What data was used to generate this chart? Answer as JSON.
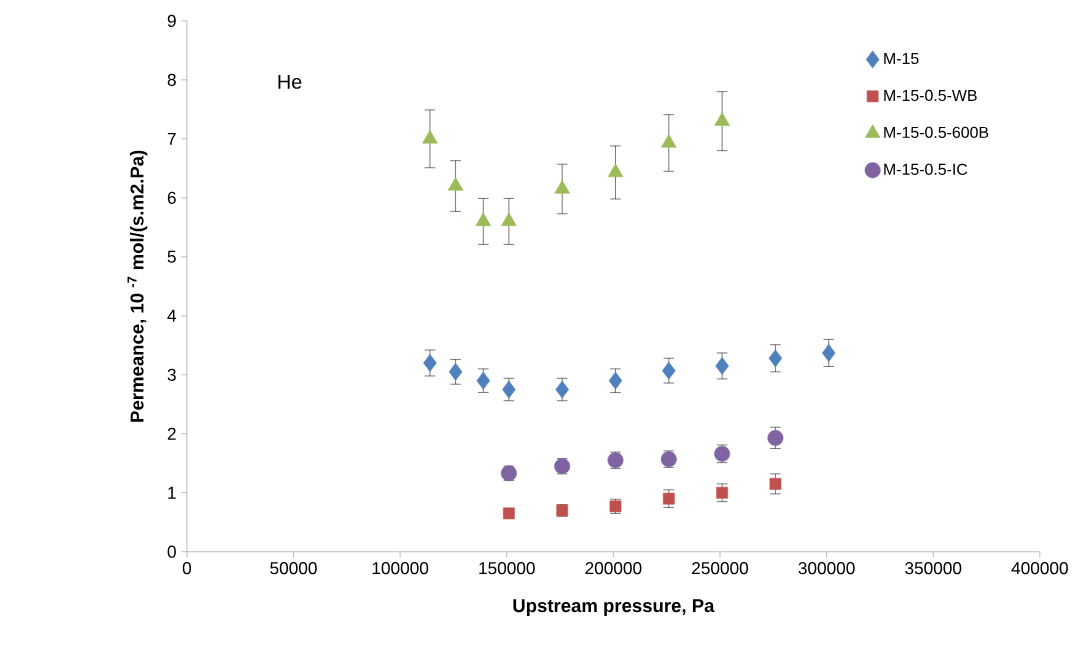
{
  "chart_data": {
    "type": "scatter",
    "xlabel": "Upstream pressure, Pa",
    "ylabel": "Permeance, 10 $^{-7}$ mol/(s.m2.Pa)",
    "annotations": [
      "He"
    ],
    "xlim": [
      0,
      400000
    ],
    "ylim": [
      0,
      9
    ],
    "xticks": [
      0,
      50000,
      100000,
      150000,
      200000,
      250000,
      300000,
      350000,
      400000
    ],
    "yticks": [
      0,
      1,
      2,
      3,
      4,
      5,
      6,
      7,
      8,
      9
    ],
    "grid": false,
    "legend": "top right",
    "series": [
      {
        "name": "M-15",
        "color": "#4f81bd",
        "marker": "diamond",
        "x": [
          114000,
          126000,
          139000,
          151000,
          176000,
          201000,
          226000,
          251000,
          276000,
          301000
        ],
        "values": [
          3.2,
          3.05,
          2.9,
          2.75,
          2.75,
          2.9,
          3.07,
          3.15,
          3.28,
          3.37
        ],
        "errors": [
          0.22,
          0.21,
          0.2,
          0.19,
          0.19,
          0.2,
          0.21,
          0.22,
          0.23,
          0.23
        ]
      },
      {
        "name": "M-15-0.5-WB",
        "color": "#c0504d",
        "marker": "square",
        "x": [
          151000,
          176000,
          201000,
          226000,
          251000,
          276000
        ],
        "values": [
          0.65,
          0.7,
          0.77,
          0.9,
          1.0,
          1.15
        ],
        "errors": [
          null,
          0.1,
          0.12,
          0.15,
          0.15,
          0.17
        ]
      },
      {
        "name": "M-15-0.5-600B",
        "color": "#9bbb59",
        "marker": "triangle",
        "x": [
          114000,
          126000,
          139000,
          151000,
          176000,
          201000,
          226000,
          251000
        ],
        "values": [
          7.0,
          6.2,
          5.6,
          5.6,
          6.15,
          6.43,
          6.93,
          7.3
        ],
        "errors": [
          0.49,
          0.43,
          0.39,
          0.39,
          0.42,
          0.45,
          0.48,
          0.5
        ]
      },
      {
        "name": "M-15-0.5-IC",
        "color": "#8064a2",
        "marker": "circle",
        "x": [
          151000,
          176000,
          201000,
          226000,
          251000,
          276000
        ],
        "values": [
          1.33,
          1.45,
          1.55,
          1.57,
          1.66,
          1.93
        ],
        "errors": [
          0.12,
          0.13,
          0.14,
          0.14,
          0.15,
          0.18
        ]
      }
    ]
  }
}
